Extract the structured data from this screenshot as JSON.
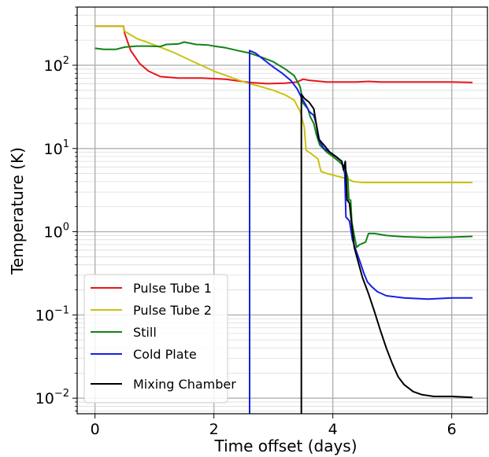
{
  "chart_data": {
    "type": "line",
    "xlabel": "Time offset (days)",
    "ylabel": "Temperature (K)",
    "y_scale": "log",
    "xlim": [
      -0.3,
      6.6
    ],
    "ylim": [
      0.0065,
      500
    ],
    "x_ticks": [
      0,
      2,
      4,
      6
    ],
    "x_tick_labels": [
      "0",
      "2",
      "4",
      "6"
    ],
    "y_ticks": [
      0.01,
      0.1,
      1,
      10,
      100
    ],
    "y_tick_labels": [
      {
        "base": "10",
        "exp": "−2"
      },
      {
        "base": "10",
        "exp": "−1"
      },
      {
        "base": "10",
        "exp": "0"
      },
      {
        "base": "10",
        "exp": "1"
      },
      {
        "base": "10",
        "exp": "2"
      }
    ],
    "grid": true,
    "legend_position": "lower-left",
    "series": [
      {
        "name": "Pulse Tube 1",
        "color": "#e8141b",
        "points": [
          [
            0,
            295
          ],
          [
            0.48,
            295
          ],
          [
            0.5,
            240
          ],
          [
            0.6,
            150
          ],
          [
            0.75,
            105
          ],
          [
            0.9,
            85
          ],
          [
            1.1,
            73
          ],
          [
            1.4,
            70
          ],
          [
            1.8,
            70
          ],
          [
            2.2,
            68
          ],
          [
            2.6,
            62
          ],
          [
            2.9,
            60
          ],
          [
            3.2,
            61
          ],
          [
            3.4,
            63
          ],
          [
            3.5,
            68
          ],
          [
            3.6,
            66
          ],
          [
            3.9,
            63
          ],
          [
            4.2,
            63
          ],
          [
            4.4,
            63
          ],
          [
            4.6,
            64
          ],
          [
            4.8,
            63
          ],
          [
            5.2,
            63
          ],
          [
            5.6,
            63
          ],
          [
            6.0,
            63
          ],
          [
            6.35,
            62
          ]
        ]
      },
      {
        "name": "Pulse Tube 2",
        "color": "#c9c312",
        "points": [
          [
            0,
            295
          ],
          [
            0.48,
            295
          ],
          [
            0.5,
            255
          ],
          [
            0.7,
            210
          ],
          [
            1.0,
            175
          ],
          [
            1.3,
            145
          ],
          [
            1.6,
            115
          ],
          [
            2.0,
            85
          ],
          [
            2.4,
            67
          ],
          [
            2.6,
            60
          ],
          [
            2.8,
            55
          ],
          [
            3.0,
            50
          ],
          [
            3.2,
            44
          ],
          [
            3.35,
            38
          ],
          [
            3.45,
            28
          ],
          [
            3.52,
            18
          ],
          [
            3.55,
            9.5
          ],
          [
            3.65,
            8.5
          ],
          [
            3.75,
            7.5
          ],
          [
            3.8,
            5.3
          ],
          [
            3.9,
            5
          ],
          [
            4.0,
            4.8
          ],
          [
            4.15,
            4.5
          ],
          [
            4.25,
            4.3
          ],
          [
            4.35,
            4
          ],
          [
            4.5,
            3.9
          ],
          [
            5.0,
            3.9
          ],
          [
            5.5,
            3.9
          ],
          [
            6.0,
            3.9
          ],
          [
            6.35,
            3.9
          ]
        ]
      },
      {
        "name": "Still",
        "color": "#128314",
        "points": [
          [
            0,
            160
          ],
          [
            0.15,
            155
          ],
          [
            0.35,
            155
          ],
          [
            0.5,
            165
          ],
          [
            0.7,
            170
          ],
          [
            0.9,
            170
          ],
          [
            1.1,
            168
          ],
          [
            1.2,
            178
          ],
          [
            1.4,
            180
          ],
          [
            1.5,
            190
          ],
          [
            1.7,
            178
          ],
          [
            1.9,
            175
          ],
          [
            2.0,
            170
          ],
          [
            2.2,
            162
          ],
          [
            2.4,
            150
          ],
          [
            2.6,
            140
          ],
          [
            2.8,
            125
          ],
          [
            3.0,
            110
          ],
          [
            3.2,
            90
          ],
          [
            3.35,
            75
          ],
          [
            3.45,
            55
          ],
          [
            3.5,
            35
          ],
          [
            3.58,
            30
          ],
          [
            3.62,
            24
          ],
          [
            3.68,
            20
          ],
          [
            3.72,
            15
          ],
          [
            3.78,
            11
          ],
          [
            3.9,
            9
          ],
          [
            4.0,
            8
          ],
          [
            4.1,
            7
          ],
          [
            4.2,
            6
          ],
          [
            4.25,
            4.5
          ],
          [
            4.27,
            2.4
          ],
          [
            4.3,
            2.4
          ],
          [
            4.32,
            1.3
          ],
          [
            4.36,
            0.9
          ],
          [
            4.4,
            0.65
          ],
          [
            4.45,
            0.7
          ],
          [
            4.55,
            0.75
          ],
          [
            4.6,
            0.95
          ],
          [
            4.7,
            0.95
          ],
          [
            4.9,
            0.9
          ],
          [
            5.2,
            0.87
          ],
          [
            5.6,
            0.85
          ],
          [
            6.0,
            0.86
          ],
          [
            6.35,
            0.88
          ]
        ]
      },
      {
        "name": "Cold Plate",
        "color": "#1520e6",
        "points": [
          [
            2.6,
            0.0065
          ],
          [
            2.6,
            150
          ],
          [
            2.7,
            140
          ],
          [
            2.85,
            115
          ],
          [
            3.0,
            95
          ],
          [
            3.15,
            80
          ],
          [
            3.3,
            65
          ],
          [
            3.4,
            52
          ],
          [
            3.48,
            40
          ],
          [
            3.55,
            33
          ],
          [
            3.6,
            28
          ],
          [
            3.68,
            25
          ],
          [
            3.72,
            20
          ],
          [
            3.78,
            12
          ],
          [
            3.85,
            10
          ],
          [
            3.95,
            9
          ],
          [
            4.05,
            8
          ],
          [
            4.15,
            7
          ],
          [
            4.2,
            5
          ],
          [
            4.22,
            1.5
          ],
          [
            4.28,
            1.35
          ],
          [
            4.33,
            0.8
          ],
          [
            4.38,
            0.62
          ],
          [
            4.45,
            0.45
          ],
          [
            4.52,
            0.32
          ],
          [
            4.58,
            0.25
          ],
          [
            4.65,
            0.22
          ],
          [
            4.75,
            0.19
          ],
          [
            4.9,
            0.17
          ],
          [
            5.2,
            0.16
          ],
          [
            5.6,
            0.155
          ],
          [
            6.0,
            0.16
          ],
          [
            6.35,
            0.16
          ]
        ]
      },
      {
        "name": "Mixing Chamber",
        "color": "#000000",
        "points": [
          [
            3.47,
            0.0065
          ],
          [
            3.47,
            45
          ],
          [
            3.52,
            40
          ],
          [
            3.6,
            36
          ],
          [
            3.68,
            30
          ],
          [
            3.72,
            20
          ],
          [
            3.76,
            13
          ],
          [
            3.85,
            11
          ],
          [
            3.95,
            9
          ],
          [
            4.05,
            8
          ],
          [
            4.15,
            7
          ],
          [
            4.18,
            5.5
          ],
          [
            4.21,
            7
          ],
          [
            4.24,
            2.4
          ],
          [
            4.28,
            2.2
          ],
          [
            4.32,
            1.2
          ],
          [
            4.36,
            0.65
          ],
          [
            4.42,
            0.45
          ],
          [
            4.5,
            0.28
          ],
          [
            4.6,
            0.18
          ],
          [
            4.7,
            0.11
          ],
          [
            4.8,
            0.065
          ],
          [
            4.9,
            0.04
          ],
          [
            5.0,
            0.026
          ],
          [
            5.1,
            0.018
          ],
          [
            5.2,
            0.0145
          ],
          [
            5.35,
            0.012
          ],
          [
            5.5,
            0.011
          ],
          [
            5.7,
            0.0105
          ],
          [
            6.0,
            0.0105
          ],
          [
            6.35,
            0.0102
          ]
        ]
      }
    ]
  }
}
